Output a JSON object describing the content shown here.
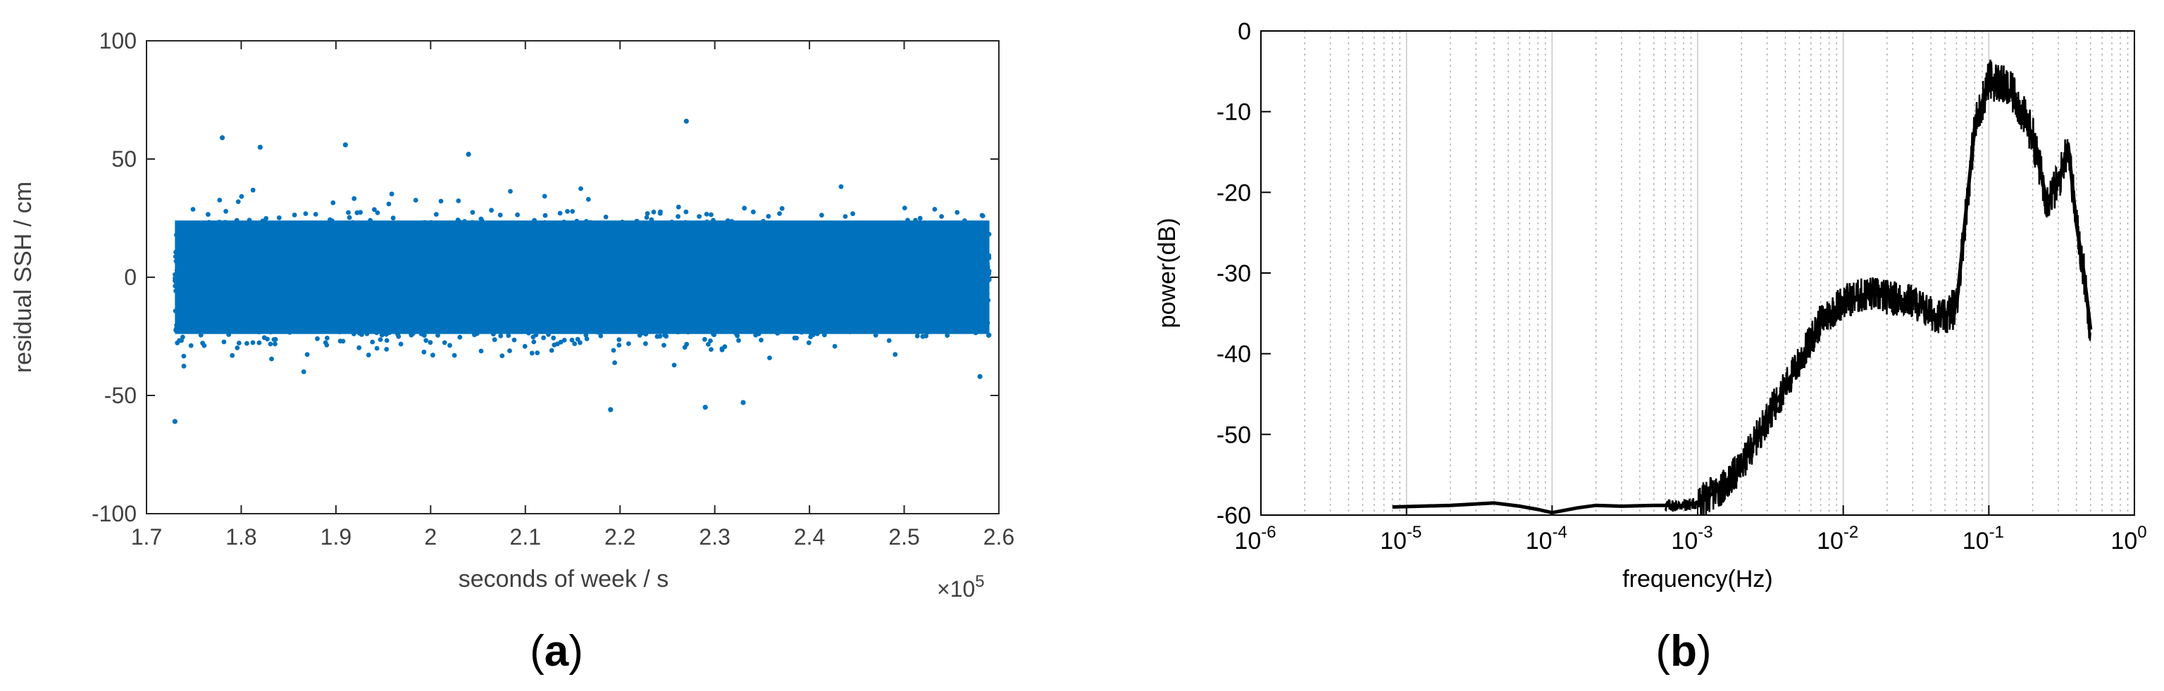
{
  "panels": [
    {
      "label": "(a)",
      "label_letter": "a"
    },
    {
      "label": "(b)",
      "label_letter": "b"
    }
  ],
  "chart_data": [
    {
      "type": "scatter",
      "xlabel": "seconds of week / s",
      "ylabel": "residual SSH / cm",
      "x_exponent_label": "×10",
      "x_exponent": "5",
      "xlim": [
        1.7,
        2.6
      ],
      "ylim": [
        -100,
        100
      ],
      "xticks": [
        "1.7",
        "1.8",
        "1.9",
        "2",
        "2.1",
        "2.2",
        "2.3",
        "2.4",
        "2.5",
        "2.6"
      ],
      "yticks": [
        "-100",
        "-50",
        "0",
        "50",
        "100"
      ],
      "grid": false,
      "marker_color": "#0072bd",
      "x_range_data": [
        1.73,
        2.59
      ],
      "typical_std": 12,
      "outliers": [
        {
          "x": 1.78,
          "y": 59
        },
        {
          "x": 1.82,
          "y": 55
        },
        {
          "x": 1.91,
          "y": 56
        },
        {
          "x": 2.04,
          "y": 52
        },
        {
          "x": 2.27,
          "y": 66
        },
        {
          "x": 1.73,
          "y": -61
        },
        {
          "x": 2.19,
          "y": -56
        },
        {
          "x": 2.29,
          "y": -55
        },
        {
          "x": 2.33,
          "y": -53
        },
        {
          "x": 2.58,
          "y": -42
        }
      ]
    },
    {
      "type": "line",
      "xlabel": "frequency(Hz)",
      "ylabel": "power(dB)",
      "xscale": "log",
      "xlim": [
        1e-06,
        1
      ],
      "ylim": [
        -60,
        0
      ],
      "x_tick_base": "10",
      "x_tick_exponents": [
        "-6",
        "-5",
        "-4",
        "-3",
        "-2",
        "-1",
        "0"
      ],
      "yticks": [
        "0",
        "-10",
        "-20",
        "-30",
        "-40",
        "-50",
        "-60"
      ],
      "grid": true,
      "line_color": "#000000",
      "series": [
        {
          "x": [
            8e-06,
            2e-05,
            4e-05,
            6e-05,
            8e-05,
            0.0001,
            0.00015,
            0.0002,
            0.0003,
            0.0005,
            0.0008,
            0.001,
            0.0015,
            0.002,
            0.003,
            0.005,
            0.007,
            0.01,
            0.015,
            0.02,
            0.03,
            0.04,
            0.05,
            0.06,
            0.07,
            0.08,
            0.1,
            0.12,
            0.15,
            0.2,
            0.25,
            0.3,
            0.35,
            0.4,
            0.45,
            0.5
          ],
          "y": [
            -59.0,
            -58.8,
            -58.5,
            -58.9,
            -59.3,
            -59.7,
            -59.1,
            -58.8,
            -58.9,
            -58.8,
            -58.8,
            -58.5,
            -56.5,
            -54,
            -48,
            -41,
            -36,
            -33.5,
            -32.5,
            -33,
            -33.5,
            -35,
            -35.5,
            -34,
            -22,
            -12,
            -6,
            -6.5,
            -8,
            -13,
            -21,
            -19,
            -14,
            -24,
            -30,
            -37
          ]
        }
      ]
    }
  ]
}
